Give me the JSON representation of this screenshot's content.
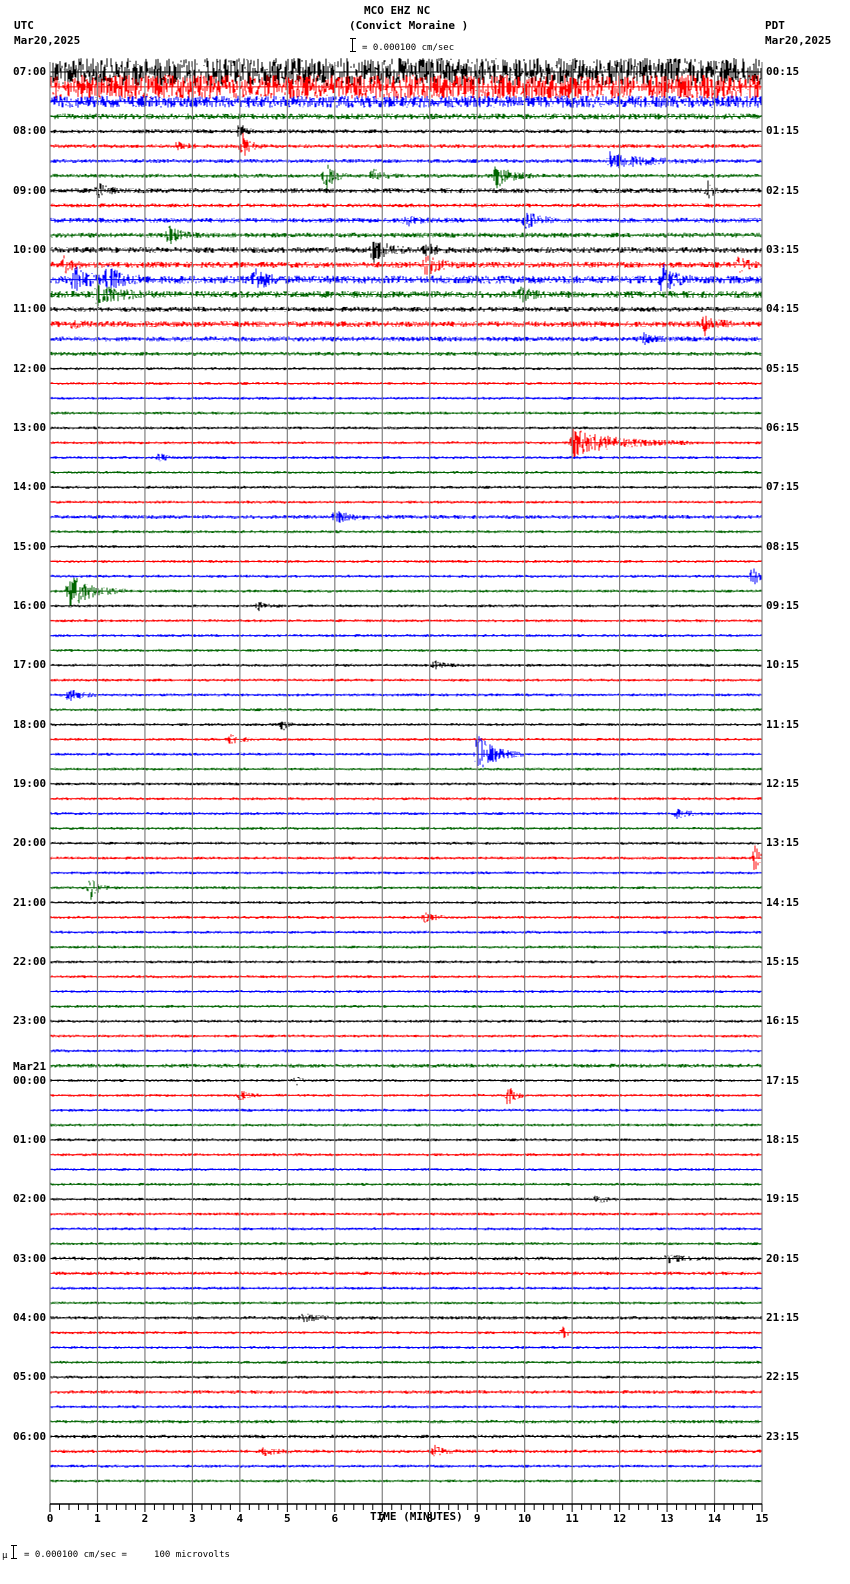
{
  "header": {
    "station": "MCO EHZ NC",
    "location": "(Convict Moraine )",
    "scale_text": "= 0.000100 cm/sec",
    "left_tz": "UTC",
    "left_date": "Mar20,2025",
    "right_tz": "PDT",
    "right_date": "Mar20,2025"
  },
  "footer": {
    "scale_prefix": "µ",
    "scale_text": "= 0.000100 cm/sec =     100 microvolts"
  },
  "colors": {
    "trace_cycle": [
      "#000000",
      "#ff0000",
      "#0000ff",
      "#006400"
    ],
    "grid": "#808080",
    "axis": "#000000"
  },
  "chart_data": {
    "type": "line",
    "title": "MCO EHZ NC (Convict Moraine )",
    "subtitle": "= 0.000100 cm/sec",
    "xlabel": "TIME (MINUTES)",
    "ylabel": "",
    "xlim": [
      0,
      15
    ],
    "x_ticks": [
      0,
      1,
      2,
      3,
      4,
      5,
      6,
      7,
      8,
      9,
      10,
      11,
      12,
      13,
      14,
      15
    ],
    "minor_tick_step": 0.2,
    "grid": true,
    "traces_per_hour": 4,
    "minutes_per_trace": 15,
    "trace_count": 96,
    "left_labels": [
      {
        "row": 0,
        "text": "07:00"
      },
      {
        "row": 4,
        "text": "08:00"
      },
      {
        "row": 8,
        "text": "09:00"
      },
      {
        "row": 12,
        "text": "10:00"
      },
      {
        "row": 16,
        "text": "11:00"
      },
      {
        "row": 20,
        "text": "12:00"
      },
      {
        "row": 24,
        "text": "13:00"
      },
      {
        "row": 28,
        "text": "14:00"
      },
      {
        "row": 32,
        "text": "15:00"
      },
      {
        "row": 36,
        "text": "16:00"
      },
      {
        "row": 40,
        "text": "17:00"
      },
      {
        "row": 44,
        "text": "18:00"
      },
      {
        "row": 48,
        "text": "19:00"
      },
      {
        "row": 52,
        "text": "20:00"
      },
      {
        "row": 56,
        "text": "21:00"
      },
      {
        "row": 60,
        "text": "22:00"
      },
      {
        "row": 64,
        "text": "23:00"
      },
      {
        "row": 68,
        "text": "00:00",
        "date": "Mar21"
      },
      {
        "row": 72,
        "text": "01:00"
      },
      {
        "row": 76,
        "text": "02:00"
      },
      {
        "row": 80,
        "text": "03:00"
      },
      {
        "row": 84,
        "text": "04:00"
      },
      {
        "row": 88,
        "text": "05:00"
      },
      {
        "row": 92,
        "text": "06:00"
      }
    ],
    "right_labels": [
      {
        "row": 0,
        "text": "00:15"
      },
      {
        "row": 4,
        "text": "01:15"
      },
      {
        "row": 8,
        "text": "02:15"
      },
      {
        "row": 12,
        "text": "03:15"
      },
      {
        "row": 16,
        "text": "04:15"
      },
      {
        "row": 20,
        "text": "05:15"
      },
      {
        "row": 24,
        "text": "06:15"
      },
      {
        "row": 28,
        "text": "07:15"
      },
      {
        "row": 32,
        "text": "08:15"
      },
      {
        "row": 36,
        "text": "09:15"
      },
      {
        "row": 40,
        "text": "10:15"
      },
      {
        "row": 44,
        "text": "11:15"
      },
      {
        "row": 48,
        "text": "12:15"
      },
      {
        "row": 52,
        "text": "13:15"
      },
      {
        "row": 56,
        "text": "14:15"
      },
      {
        "row": 60,
        "text": "15:15"
      },
      {
        "row": 64,
        "text": "16:15"
      },
      {
        "row": 68,
        "text": "17:15"
      },
      {
        "row": 72,
        "text": "18:15"
      },
      {
        "row": 76,
        "text": "19:15"
      },
      {
        "row": 80,
        "text": "20:15"
      },
      {
        "row": 84,
        "text": "21:15"
      },
      {
        "row": 88,
        "text": "22:15"
      },
      {
        "row": 92,
        "text": "23:15"
      }
    ],
    "noise_levels": [
      14,
      12,
      6,
      3,
      2,
      2,
      2,
      2,
      2.5,
      2,
      2.5,
      2.5,
      3,
      3,
      4,
      3.5,
      2.5,
      3,
      2.5,
      2,
      1.5,
      1.5,
      1.5,
      1.5,
      1.5,
      1.5,
      1.5,
      1.5,
      1.5,
      1.5,
      2,
      1.5,
      1.5,
      1.5,
      1.5,
      1.5,
      1.5,
      1.5,
      1.5,
      1.5,
      1.5,
      1.5,
      1.5,
      1.5,
      1.5,
      1.5,
      1.5,
      1.5,
      1.5,
      1.5,
      1.5,
      1.5,
      1.5,
      1.5,
      1.5,
      1.5,
      1.5,
      1.5,
      1.5,
      1.5,
      1.5,
      1.5,
      1.5,
      1.5,
      1.5,
      1.5,
      1.5,
      2,
      1.5,
      1.5,
      1.5,
      1.5,
      1.5,
      1.5,
      1.5,
      1.5,
      1.5,
      1.5,
      1.5,
      1.5,
      1.8,
      1.8,
      1.5,
      1.5,
      1.8,
      1.5,
      1.5,
      1.5,
      1.5,
      1.8,
      1.5,
      1.8,
      1.8,
      1.8,
      1.5,
      1.5
    ],
    "events": [
      {
        "row": 4,
        "t": 4.0,
        "amp": 8,
        "dur": 0.3
      },
      {
        "row": 5,
        "t": 4.05,
        "amp": 14,
        "dur": 0.4
      },
      {
        "row": 5,
        "t": 2.7,
        "amp": 5,
        "dur": 0.5
      },
      {
        "row": 6,
        "t": 11.8,
        "amp": 8,
        "dur": 2.0
      },
      {
        "row": 7,
        "t": 5.8,
        "amp": 16,
        "dur": 0.5
      },
      {
        "row": 7,
        "t": 6.8,
        "amp": 7,
        "dur": 0.5
      },
      {
        "row": 7,
        "t": 9.4,
        "amp": 12,
        "dur": 0.8
      },
      {
        "row": 8,
        "t": 1.0,
        "amp": 8,
        "dur": 0.5
      },
      {
        "row": 8,
        "t": 13.85,
        "amp": 10,
        "dur": 0.3
      },
      {
        "row": 10,
        "t": 10.0,
        "amp": 9,
        "dur": 0.8
      },
      {
        "row": 10,
        "t": 7.5,
        "amp": 5,
        "dur": 0.6
      },
      {
        "row": 11,
        "t": 2.5,
        "amp": 9,
        "dur": 0.6
      },
      {
        "row": 12,
        "t": 6.8,
        "amp": 12,
        "dur": 0.8
      },
      {
        "row": 12,
        "t": 7.9,
        "amp": 8,
        "dur": 0.5
      },
      {
        "row": 13,
        "t": 7.9,
        "amp": 10,
        "dur": 0.8
      },
      {
        "row": 13,
        "t": 0.3,
        "amp": 7,
        "dur": 0.5
      },
      {
        "row": 13,
        "t": 14.5,
        "amp": 6,
        "dur": 0.6
      },
      {
        "row": 14,
        "t": 0.5,
        "amp": 12,
        "dur": 0.8
      },
      {
        "row": 14,
        "t": 1.2,
        "amp": 12,
        "dur": 0.8
      },
      {
        "row": 14,
        "t": 4.3,
        "amp": 12,
        "dur": 0.6
      },
      {
        "row": 14,
        "t": 12.9,
        "amp": 14,
        "dur": 0.6
      },
      {
        "row": 15,
        "t": 1.0,
        "amp": 10,
        "dur": 1.2
      },
      {
        "row": 15,
        "t": 9.9,
        "amp": 7,
        "dur": 0.5
      },
      {
        "row": 17,
        "t": 13.8,
        "amp": 10,
        "dur": 0.6
      },
      {
        "row": 17,
        "t": 0.5,
        "amp": 5,
        "dur": 0.4
      },
      {
        "row": 18,
        "t": 12.5,
        "amp": 5,
        "dur": 0.5
      },
      {
        "row": 25,
        "t": 11.0,
        "amp": 14,
        "dur": 2.5
      },
      {
        "row": 26,
        "t": 2.3,
        "amp": 6,
        "dur": 0.3
      },
      {
        "row": 30,
        "t": 6.0,
        "amp": 5,
        "dur": 1.2
      },
      {
        "row": 34,
        "t": 14.8,
        "amp": 10,
        "dur": 0.4
      },
      {
        "row": 35,
        "t": 0.4,
        "amp": 18,
        "dur": 1.2
      },
      {
        "row": 36,
        "t": 4.4,
        "amp": 4,
        "dur": 0.5
      },
      {
        "row": 40,
        "t": 8.1,
        "amp": 4,
        "dur": 0.5
      },
      {
        "row": 42,
        "t": 0.4,
        "amp": 8,
        "dur": 0.6
      },
      {
        "row": 44,
        "t": 4.9,
        "amp": 6,
        "dur": 0.3
      },
      {
        "row": 45,
        "t": 3.8,
        "amp": 4,
        "dur": 0.6
      },
      {
        "row": 46,
        "t": 9.0,
        "amp": 20,
        "dur": 1.0
      },
      {
        "row": 50,
        "t": 13.2,
        "amp": 4,
        "dur": 0.8
      },
      {
        "row": 53,
        "t": 14.85,
        "amp": 14,
        "dur": 0.3
      },
      {
        "row": 55,
        "t": 0.85,
        "amp": 12,
        "dur": 0.4
      },
      {
        "row": 57,
        "t": 7.9,
        "amp": 4,
        "dur": 0.6
      },
      {
        "row": 68,
        "t": 5.2,
        "amp": 5,
        "dur": 0.2
      },
      {
        "row": 69,
        "t": 9.65,
        "amp": 10,
        "dur": 0.4
      },
      {
        "row": 69,
        "t": 4.0,
        "amp": 5,
        "dur": 0.4
      },
      {
        "row": 76,
        "t": 11.5,
        "amp": 5,
        "dur": 0.5
      },
      {
        "row": 80,
        "t": 13.0,
        "amp": 4,
        "dur": 0.8
      },
      {
        "row": 84,
        "t": 5.3,
        "amp": 4,
        "dur": 0.8
      },
      {
        "row": 85,
        "t": 10.8,
        "amp": 6,
        "dur": 0.3
      },
      {
        "row": 93,
        "t": 8.1,
        "amp": 5,
        "dur": 0.5
      },
      {
        "row": 93,
        "t": 4.5,
        "amp": 4,
        "dur": 0.6
      }
    ]
  }
}
